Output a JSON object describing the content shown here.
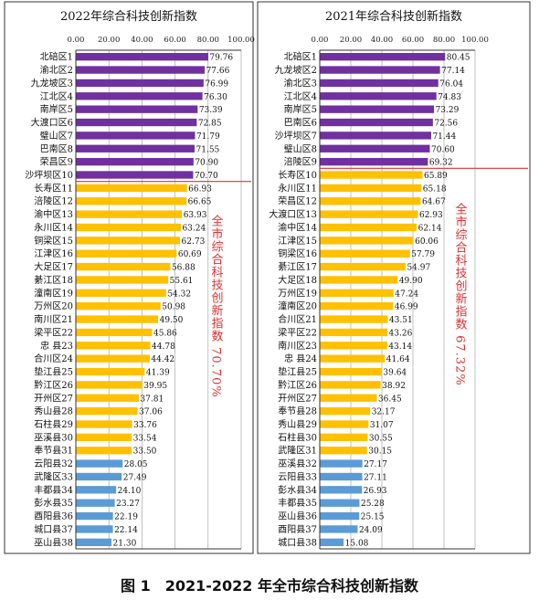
{
  "figure_caption": "图 1　2021-2022 年全市综合科技创新指数",
  "colors": {
    "purple": "#7030A0",
    "gold": "#FFC000",
    "blue": "#5B9BD5",
    "red": "#E03030",
    "grid": "#999999"
  },
  "chart_data": [
    {
      "type": "bar",
      "orientation": "horizontal",
      "title": "2022年综合科技创新指数",
      "xlim": [
        0,
        100
      ],
      "xticks": [
        "0.00",
        "20.00",
        "40.00",
        "60.00",
        "80.00",
        "100.00"
      ],
      "grid": true,
      "categories": [
        "北碚区1",
        "渝北区2",
        "九龙坡区3",
        "江北区4",
        "南岸区5",
        "大渡口区6",
        "璧山区7",
        "巴南区8",
        "荣昌区9",
        "沙坪坝区10",
        "长寿区11",
        "涪陵区12",
        "渝中区13",
        "永川区14",
        "铜梁区15",
        "江津区16",
        "大足区17",
        "綦江区18",
        "潼南区19",
        "万州区20",
        "南川区21",
        "梁平区22",
        "忠 县23",
        "合川区24",
        "垫江县25",
        "黔江区26",
        "开州区27",
        "秀山县28",
        "石柱县29",
        "巫溪县30",
        "奉节县31",
        "云阳县32",
        "武隆区33",
        "丰都县34",
        "彭水县35",
        "酉阳县36",
        "城口县37",
        "巫山县38"
      ],
      "values": [
        79.76,
        77.66,
        76.99,
        76.3,
        73.39,
        72.85,
        71.79,
        71.55,
        70.9,
        70.7,
        66.93,
        66.65,
        63.93,
        63.24,
        62.73,
        60.69,
        56.88,
        55.61,
        54.32,
        50.98,
        49.5,
        45.86,
        44.78,
        44.42,
        41.39,
        39.95,
        37.81,
        37.06,
        33.76,
        33.54,
        33.5,
        28.05,
        27.49,
        24.1,
        23.27,
        22.19,
        22.14,
        21.3
      ],
      "labels": [
        "79.76",
        "77.66",
        "76.99",
        "76.30",
        "73.39",
        "72.85",
        "71.79",
        "71.55",
        "70.90",
        "70.70",
        "66.93",
        "66.65",
        "63.93",
        "63.24",
        "62.73",
        "60.69",
        "56.88",
        "55.61",
        "54.32",
        "50.98",
        "49.50",
        "45.86",
        "44.78",
        "44.42",
        "41.39",
        "39.95",
        "37.81",
        "37.06",
        "33.76",
        "33.54",
        "33.50",
        "28.05",
        "27.49",
        "24.10",
        "23.27",
        "22.19",
        "22.14",
        "21.30"
      ],
      "color_groups": [
        {
          "color": "purple",
          "count": 10
        },
        {
          "color": "gold",
          "count": 21
        },
        {
          "color": "blue",
          "count": 7
        }
      ],
      "reference_line": {
        "value": 70.7,
        "label": "全市综合科技创新指数 70.70%"
      }
    },
    {
      "type": "bar",
      "orientation": "horizontal",
      "title": "2021年综合科技创新指数",
      "xlim": [
        0,
        100
      ],
      "xticks": [
        "0.00",
        "20.00",
        "40.00",
        "60.00",
        "80.00",
        "100.00"
      ],
      "grid": true,
      "categories": [
        "北碚区1",
        "九龙坡区2",
        "渝北区3",
        "江北区4",
        "南岸区5",
        "巴南区6",
        "沙坪坝区7",
        "璧山区8",
        "涪陵区9",
        "长寿区10",
        "永川区11",
        "荣昌区12",
        "大渡口区13",
        "渝中区14",
        "江津区15",
        "铜梁区16",
        "綦江区17",
        "大足区18",
        "万州区19",
        "潼南区20",
        "合川区21",
        "梁平区22",
        "南川区23",
        "忠 县24",
        "垫江县25",
        "黔江区26",
        "开州区27",
        "奉节县28",
        "秀山县29",
        "石柱县30",
        "武隆区31",
        "巫溪县32",
        "云阳县33",
        "彭水县34",
        "丰都县35",
        "巫山县36",
        "酉阳县37",
        "城口县38"
      ],
      "values": [
        80.45,
        77.14,
        76.04,
        74.83,
        73.29,
        72.56,
        71.44,
        70.6,
        69.32,
        65.89,
        65.18,
        64.67,
        62.93,
        62.14,
        60.06,
        57.79,
        54.97,
        49.9,
        47.24,
        46.99,
        43.51,
        43.26,
        43.14,
        41.64,
        39.64,
        38.92,
        36.45,
        32.17,
        31.07,
        30.55,
        30.15,
        27.17,
        27.11,
        26.93,
        25.28,
        25.15,
        24.09,
        15.08
      ],
      "labels": [
        "80.45",
        "77.14",
        "76.04",
        "74.83",
        "73.29",
        "72.56",
        "71.44",
        "70.60",
        "69.32",
        "65.89",
        "65.18",
        "64.67",
        "62.93",
        "62.14",
        "60.06",
        "57.79",
        "54.97",
        "49.90",
        "47.24",
        "46.99",
        "43.51",
        "43.26",
        "43.14",
        "41.64",
        "39.64",
        "38.92",
        "36.45",
        "32.17",
        "31.07",
        "30.55",
        "30.15",
        "27.17",
        "27.11",
        "26.93",
        "25.28",
        "25.15",
        "24.09",
        "15.08"
      ],
      "color_groups": [
        {
          "color": "purple",
          "count": 9
        },
        {
          "color": "gold",
          "count": 22
        },
        {
          "color": "blue",
          "count": 7
        }
      ],
      "reference_line": {
        "value": 67.32,
        "label": "全市综合科技创新指数 67.32%"
      }
    }
  ]
}
